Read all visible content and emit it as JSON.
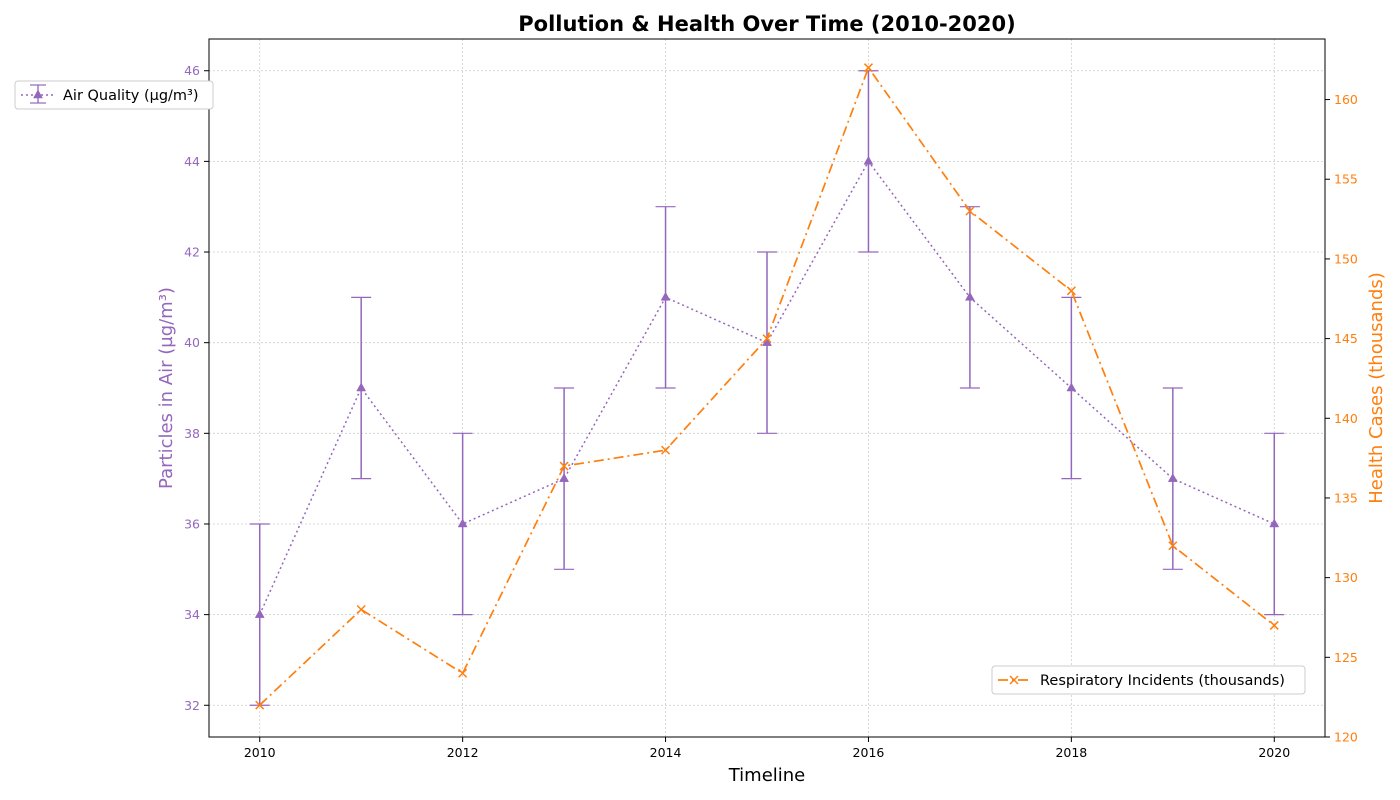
{
  "chart_data": {
    "type": "line",
    "title": "Pollution & Health Over Time (2010-2020)",
    "xlabel": "Timeline",
    "x": [
      2010,
      2011,
      2012,
      2013,
      2014,
      2015,
      2016,
      2017,
      2018,
      2019,
      2020
    ],
    "x_ticks": [
      "2010",
      "2012",
      "2014",
      "2016",
      "2018",
      "2020"
    ],
    "xlim": [
      2009.5,
      2020.5
    ],
    "y_left": {
      "label": "Particles in Air (µg/m³)",
      "lim": [
        31.3,
        46.7
      ],
      "ticks": [
        "32",
        "34",
        "36",
        "38",
        "40",
        "42",
        "44",
        "46"
      ],
      "color": "#9467bd"
    },
    "y_right": {
      "label": "Health Cases (thousands)",
      "lim": [
        120,
        163.8
      ],
      "ticks": [
        "120",
        "125",
        "130",
        "135",
        "140",
        "145",
        "150",
        "155",
        "160"
      ],
      "color": "#ff7f0e"
    },
    "series": [
      {
        "name": "Air Quality (µg/m³)",
        "axis": "left",
        "color": "#9467bd",
        "linestyle": "dotted",
        "marker": "triangle",
        "values": [
          34,
          39,
          36,
          37,
          41,
          40,
          44,
          41,
          39,
          37,
          36
        ],
        "error": [
          2,
          2,
          2,
          2,
          2,
          2,
          2,
          2,
          2,
          2,
          2
        ]
      },
      {
        "name": "Respiratory Incidents (thousands)",
        "axis": "right",
        "color": "#ff7f0e",
        "linestyle": "dashdot",
        "marker": "x",
        "values": [
          122,
          128,
          124,
          137,
          138,
          145,
          162,
          153,
          148,
          132,
          127
        ]
      }
    ],
    "grid": true,
    "legends": [
      "top-left",
      "bottom-right"
    ]
  }
}
